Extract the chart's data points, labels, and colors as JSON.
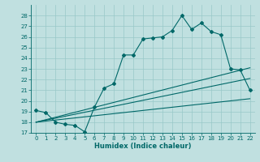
{
  "xlabel": "Humidex (Indice chaleur)",
  "bg_color": "#c0e0e0",
  "grid_color": "#98c8c8",
  "line_color": "#006868",
  "x_data": [
    0,
    1,
    2,
    3,
    4,
    5,
    6,
    7,
    8,
    9,
    10,
    11,
    12,
    13,
    14,
    15,
    16,
    17,
    18,
    19,
    20,
    21,
    22
  ],
  "main_y": [
    19.1,
    18.9,
    18.0,
    17.8,
    17.7,
    17.1,
    19.4,
    21.2,
    21.6,
    24.3,
    24.3,
    25.8,
    25.9,
    26.0,
    26.6,
    28.0,
    26.7,
    27.3,
    26.5,
    26.2,
    23.0,
    22.9,
    21.0
  ],
  "line1_x": [
    0,
    22
  ],
  "line1_y": [
    18.0,
    23.1
  ],
  "line2_x": [
    0,
    22
  ],
  "line2_y": [
    18.0,
    22.1
  ],
  "line3_x": [
    0,
    22
  ],
  "line3_y": [
    18.0,
    20.2
  ],
  "ylim": [
    17,
    29
  ],
  "xlim": [
    -0.5,
    22.5
  ],
  "yticks": [
    17,
    18,
    19,
    20,
    21,
    22,
    23,
    24,
    25,
    26,
    27,
    28
  ],
  "xticks": [
    0,
    1,
    2,
    3,
    4,
    5,
    6,
    7,
    8,
    9,
    10,
    11,
    12,
    13,
    14,
    15,
    16,
    17,
    18,
    19,
    20,
    21,
    22
  ]
}
